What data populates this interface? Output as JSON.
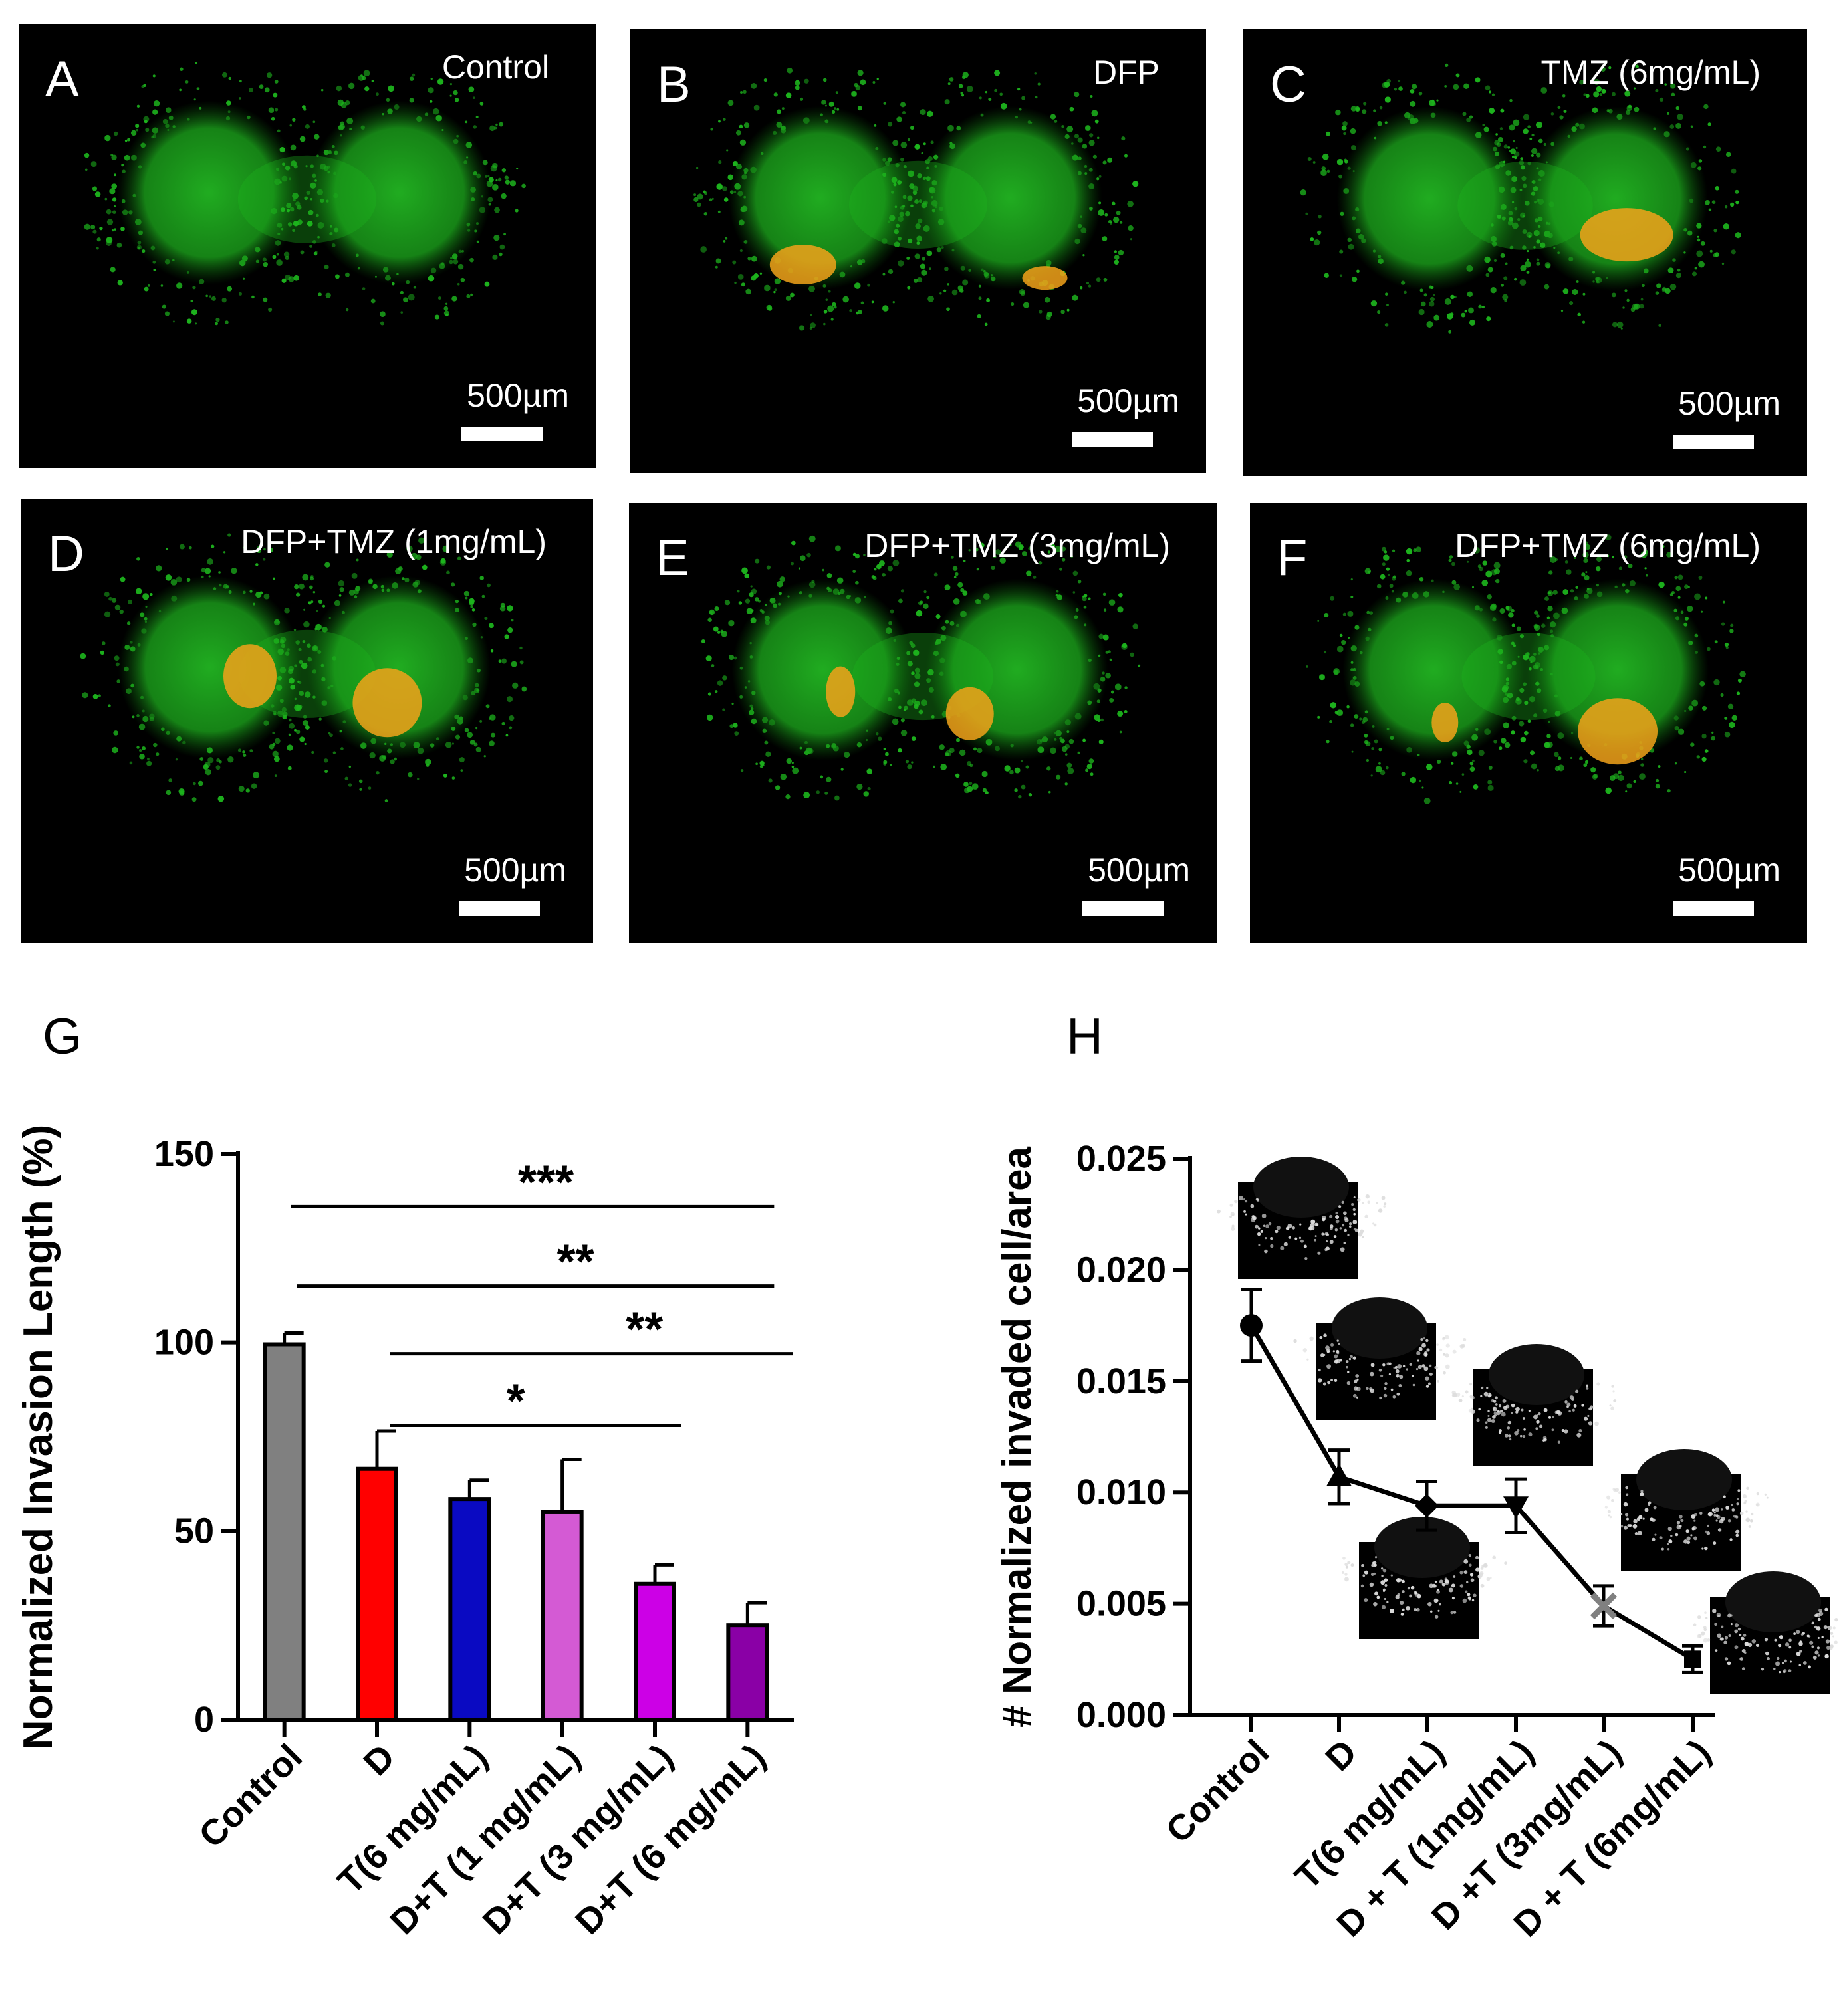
{
  "micrographs": [
    {
      "label": "A",
      "title": "Control",
      "scale": "500µm",
      "orange": []
    },
    {
      "label": "B",
      "title": "DFP",
      "scale": "500µm",
      "orange": [
        [
          0.3,
          0.53,
          50,
          30
        ],
        [
          0.72,
          0.56,
          34,
          18
        ]
      ]
    },
    {
      "label": "C",
      "title": "TMZ (6mg/mL)",
      "scale": "500µm",
      "orange": [
        [
          0.68,
          0.46,
          70,
          40
        ]
      ]
    },
    {
      "label": "D",
      "title": "DFP+TMZ (1mg/mL)",
      "scale": "500µm",
      "orange": [
        [
          0.4,
          0.4,
          40,
          48
        ],
        [
          0.64,
          0.46,
          52,
          52
        ]
      ]
    },
    {
      "label": "E",
      "title": "DFP+TMZ (3mg/mL)",
      "scale": "500µm",
      "orange": [
        [
          0.36,
          0.43,
          22,
          38
        ],
        [
          0.58,
          0.48,
          36,
          40
        ]
      ]
    },
    {
      "label": "F",
      "title": "DFP+TMZ (6mg/mL)",
      "scale": "500µm",
      "orange": [
        [
          0.35,
          0.5,
          20,
          30
        ],
        [
          0.66,
          0.52,
          60,
          50
        ]
      ]
    }
  ],
  "colors": {
    "fluorescence_green": "#1db41d",
    "fluorescence_orange": "#f2a21a"
  },
  "chart_data": [
    {
      "type": "bar",
      "panel_label": "G",
      "ylabel": "Normalized Invasion Length (%)",
      "categories": [
        "Control",
        "D",
        "T(6 mg/mL)",
        "D+T (1 mg/mL)",
        "D+T (3 mg/mL)",
        "D+T (6 mg/mL)"
      ],
      "values": [
        99.5,
        66.5,
        58.5,
        55,
        36,
        25
      ],
      "errors": [
        3,
        10,
        5,
        14,
        5,
        6
      ],
      "colors": [
        "#808080",
        "#ff0000",
        "#0a0ac2",
        "#d45ad4",
        "#cc00e6",
        "#8a00a6"
      ],
      "ylim": [
        0,
        150
      ],
      "yticks": [
        0,
        50,
        100,
        150
      ],
      "significance": [
        {
          "from": 0,
          "to": 5,
          "y": 136,
          "label": "***"
        },
        {
          "from": 1,
          "to": 5,
          "y": 115,
          "label": "**"
        },
        {
          "from": 2,
          "to": 5.2,
          "y": 97,
          "label": "**"
        },
        {
          "from": 2,
          "to": 4,
          "y": 78,
          "label": "*"
        }
      ]
    },
    {
      "type": "line",
      "panel_label": "H",
      "ylabel": "# Normalized invaded cell/area",
      "categories": [
        "Control",
        "D",
        "T(6 mg/mL)",
        "D + T (1mg/mL)",
        "D +T (3mg/mL)",
        "D + T (6mg/mL)"
      ],
      "values": [
        0.0175,
        0.0107,
        0.0094,
        0.0094,
        0.0049,
        0.0025
      ],
      "errors": [
        0.0016,
        0.0012,
        0.0011,
        0.0012,
        0.0009,
        0.0006
      ],
      "markers": [
        "circle",
        "triangle-up",
        "diamond",
        "triangle-down",
        "x",
        "square"
      ],
      "ylim": [
        0,
        0.025
      ],
      "yticks": [
        "0.000",
        "0.005",
        "0.010",
        "0.015",
        "0.020",
        "0.025"
      ]
    }
  ]
}
